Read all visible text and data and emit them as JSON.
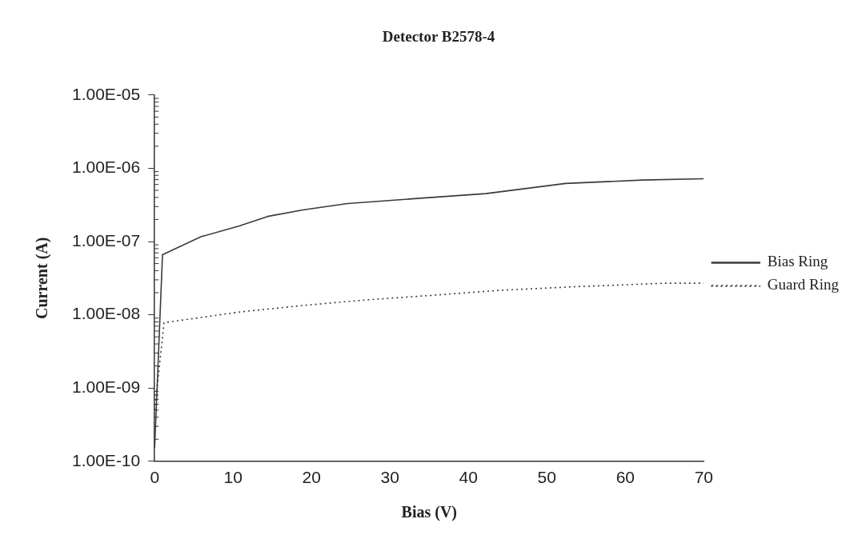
{
  "chart_data": {
    "type": "line",
    "title": "Detector B2578-4",
    "xlabel": "Bias (V)",
    "ylabel": "Current (A)",
    "log": "y",
    "grid": false,
    "legend": "right",
    "marker": "none",
    "xlim": [
      0,
      70
    ],
    "xticks": [
      0,
      10,
      20,
      30,
      40,
      50,
      60,
      70
    ],
    "ylim": [
      1e-10,
      1e-05
    ],
    "yticks": [
      {
        "value": 1e-10,
        "label": "1.00E-10"
      },
      {
        "value": 1e-09,
        "label": "1.00E-09"
      },
      {
        "value": 1e-08,
        "label": "1.00E-08"
      },
      {
        "value": 1e-07,
        "label": "1.00E-07"
      },
      {
        "value": 1e-06,
        "label": "1.00E-06"
      },
      {
        "value": 1e-05,
        "label": "1.00E-05"
      }
    ],
    "series": [
      {
        "name": "Bias Ring",
        "color": "#3a3a3a",
        "line_style": "solid",
        "x": [
          0,
          1,
          5.9,
          10.8,
          14.4,
          18.9,
          24.6,
          35.3,
          42.2,
          52.4,
          62.2,
          70
        ],
        "values": [
          1.5e-10,
          6.6e-08,
          1.16e-07,
          1.63e-07,
          2.2e-07,
          2.7e-07,
          3.3e-07,
          4e-07,
          4.5e-07,
          6.2e-07,
          6.9e-07,
          7.2e-07
        ]
      },
      {
        "name": "Guard Ring",
        "color": "#3a3a3a",
        "line_style": "dotted",
        "x": [
          0,
          1.2,
          10.8,
          18.9,
          27.1,
          35.3,
          44.1,
          53,
          65.2,
          70
        ],
        "values": [
          5e-10,
          7.8e-09,
          1.09e-08,
          1.34e-08,
          1.6e-08,
          1.84e-08,
          2.16e-08,
          2.4e-08,
          2.7e-08,
          2.7e-08
        ]
      }
    ]
  }
}
